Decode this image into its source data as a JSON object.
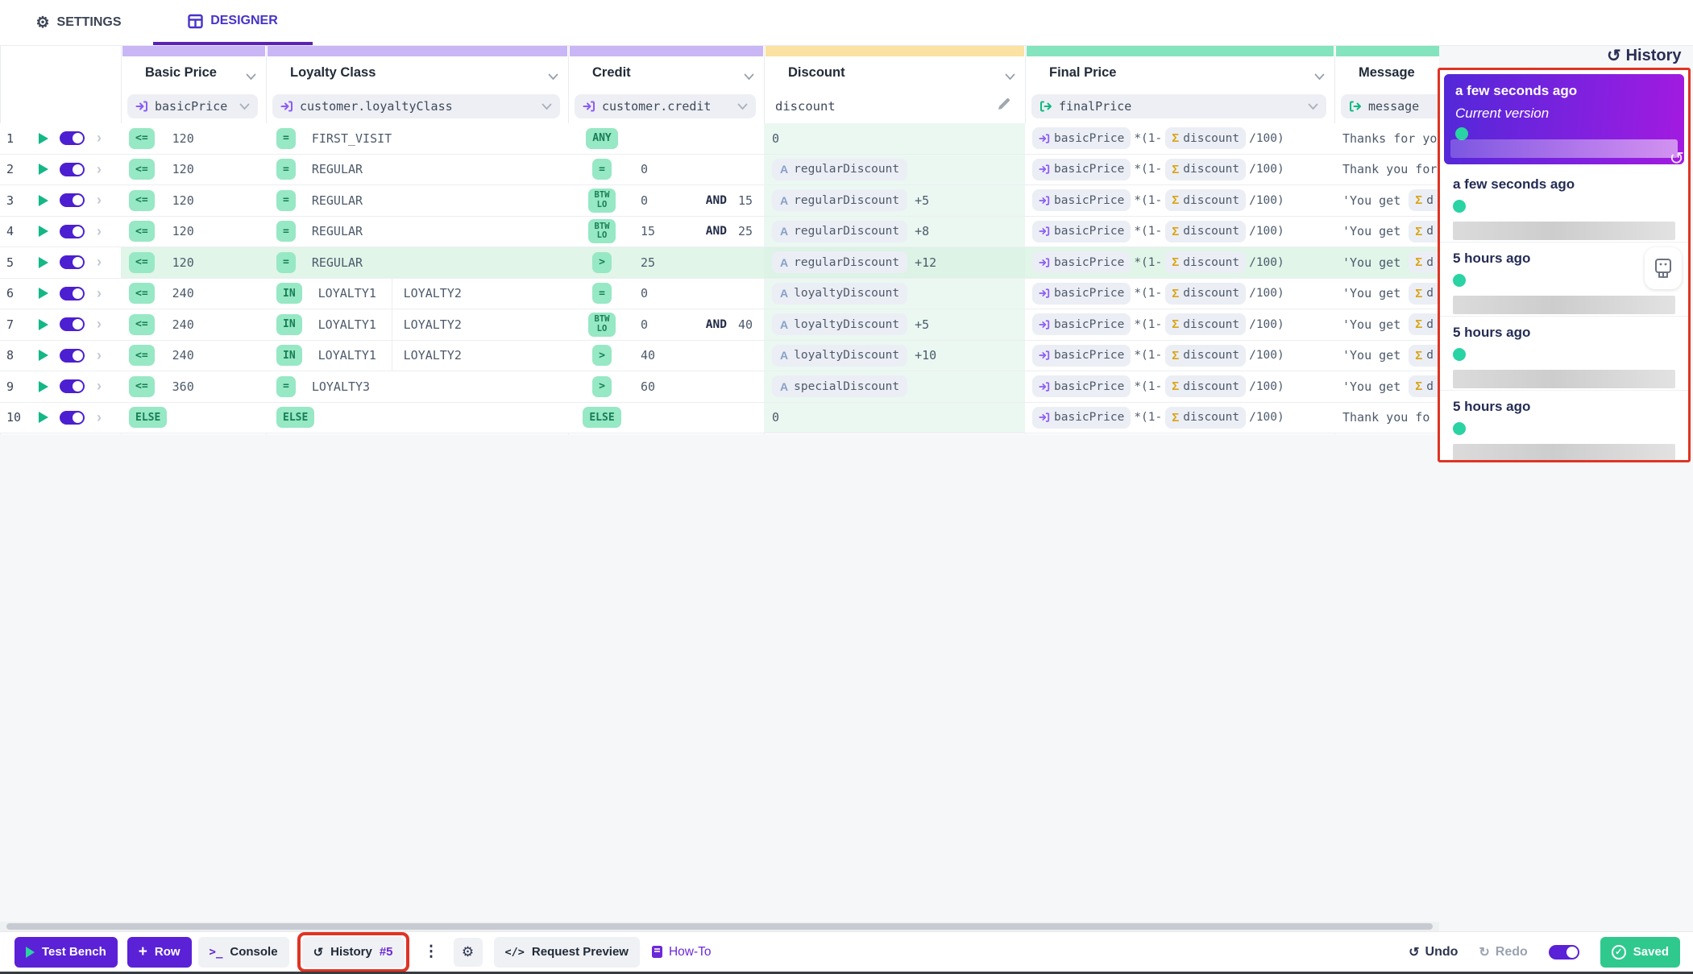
{
  "tabs": {
    "settings": "SETTINGS",
    "designer": "DESIGNER"
  },
  "history": {
    "title": "History",
    "entries": [
      {
        "time": "a few seconds ago",
        "label": "Current version",
        "current": true
      },
      {
        "time": "a few seconds ago",
        "current": false
      },
      {
        "time": "5 hours ago",
        "current": false,
        "restore": true
      },
      {
        "time": "5 hours ago",
        "current": false
      },
      {
        "time": "5 hours ago",
        "current": false
      }
    ]
  },
  "table": {
    "columns": [
      {
        "title": "Basic Price",
        "binding": "basicPrice",
        "kind": "input"
      },
      {
        "title": "Loyalty Class",
        "binding": "customer.loyaltyClass",
        "kind": "input"
      },
      {
        "title": "Credit",
        "binding": "customer.credit",
        "kind": "input"
      },
      {
        "title": "Discount",
        "binding": "discount",
        "kind": "expression"
      },
      {
        "title": "Final Price",
        "binding": "finalPrice",
        "kind": "output"
      },
      {
        "title": "Message",
        "binding": "message",
        "kind": "output"
      }
    ],
    "and_label": "AND",
    "rows": [
      {
        "num": "1",
        "enabled": true,
        "highlighted": false,
        "basic": {
          "op": "<=",
          "value": "120"
        },
        "loyalty": {
          "op": "=",
          "values": [
            "FIRST_VISIT"
          ]
        },
        "credit": {
          "op": "ANY",
          "value": ""
        },
        "discount": {
          "text": "0"
        },
        "final": {
          "input": "basicPrice",
          "operator": "*(1-",
          "sum": "discount",
          "suffix": "/100)"
        },
        "message": {
          "text": "Thanks for yo"
        }
      },
      {
        "num": "2",
        "enabled": true,
        "highlighted": false,
        "basic": {
          "op": "<=",
          "value": "120"
        },
        "loyalty": {
          "op": "=",
          "values": [
            "REGULAR"
          ]
        },
        "credit": {
          "op": "=",
          "value": "0"
        },
        "discount": {
          "var": "regularDiscount",
          "suffix": ""
        },
        "final": {
          "input": "basicPrice",
          "operator": "*(1-",
          "sum": "discount",
          "suffix": "/100)"
        },
        "message": {
          "text": "Thank you for"
        }
      },
      {
        "num": "3",
        "enabled": true,
        "highlighted": false,
        "basic": {
          "op": "<=",
          "value": "120"
        },
        "loyalty": {
          "op": "=",
          "values": [
            "REGULAR"
          ]
        },
        "credit": {
          "op": "BTW LO",
          "value": "0",
          "value2": "15"
        },
        "discount": {
          "var": "regularDiscount",
          "suffix": "+5"
        },
        "final": {
          "input": "basicPrice",
          "operator": "*(1-",
          "sum": "discount",
          "suffix": "/100)"
        },
        "message": {
          "prefix": "'You get",
          "sum": "d"
        }
      },
      {
        "num": "4",
        "enabled": true,
        "highlighted": false,
        "basic": {
          "op": "<=",
          "value": "120"
        },
        "loyalty": {
          "op": "=",
          "values": [
            "REGULAR"
          ]
        },
        "credit": {
          "op": "BTW LO",
          "value": "15",
          "value2": "25"
        },
        "discount": {
          "var": "regularDiscount",
          "suffix": "+8"
        },
        "final": {
          "input": "basicPrice",
          "operator": "*(1-",
          "sum": "discount",
          "suffix": "/100)"
        },
        "message": {
          "prefix": "'You get",
          "sum": "d"
        }
      },
      {
        "num": "5",
        "enabled": true,
        "highlighted": true,
        "basic": {
          "op": "<=",
          "value": "120"
        },
        "loyalty": {
          "op": "=",
          "values": [
            "REGULAR"
          ]
        },
        "credit": {
          "op": ">",
          "value": "25"
        },
        "discount": {
          "var": "regularDiscount",
          "suffix": "+12"
        },
        "final": {
          "input": "basicPrice",
          "operator": "*(1-",
          "sum": "discount",
          "suffix": "/100)"
        },
        "message": {
          "prefix": "'You get",
          "sum": "d"
        }
      },
      {
        "num": "6",
        "enabled": true,
        "highlighted": false,
        "basic": {
          "op": "<=",
          "value": "240"
        },
        "loyalty": {
          "op": "IN",
          "values": [
            "LOYALTY1",
            "LOYALTY2"
          ]
        },
        "credit": {
          "op": "=",
          "value": "0"
        },
        "discount": {
          "var": "loyaltyDiscount",
          "suffix": ""
        },
        "final": {
          "input": "basicPrice",
          "operator": "*(1-",
          "sum": "discount",
          "suffix": "/100)"
        },
        "message": {
          "prefix": "'You get",
          "sum": "d"
        }
      },
      {
        "num": "7",
        "enabled": true,
        "highlighted": false,
        "basic": {
          "op": "<=",
          "value": "240"
        },
        "loyalty": {
          "op": "IN",
          "values": [
            "LOYALTY1",
            "LOYALTY2"
          ]
        },
        "credit": {
          "op": "BTW LO",
          "value": "0",
          "value2": "40"
        },
        "discount": {
          "var": "loyaltyDiscount",
          "suffix": "+5"
        },
        "final": {
          "input": "basicPrice",
          "operator": "*(1-",
          "sum": "discount",
          "suffix": "/100)"
        },
        "message": {
          "prefix": "'You get",
          "sum": "d"
        }
      },
      {
        "num": "8",
        "enabled": true,
        "highlighted": false,
        "basic": {
          "op": "<=",
          "value": "240"
        },
        "loyalty": {
          "op": "IN",
          "values": [
            "LOYALTY1",
            "LOYALTY2"
          ]
        },
        "credit": {
          "op": ">",
          "value": "40"
        },
        "discount": {
          "var": "loyaltyDiscount",
          "suffix": "+10"
        },
        "final": {
          "input": "basicPrice",
          "operator": "*(1-",
          "sum": "discount",
          "suffix": "/100)"
        },
        "message": {
          "prefix": "'You get",
          "sum": "d"
        }
      },
      {
        "num": "9",
        "enabled": true,
        "highlighted": false,
        "basic": {
          "op": "<=",
          "value": "360"
        },
        "loyalty": {
          "op": "=",
          "values": [
            "LOYALTY3"
          ]
        },
        "credit": {
          "op": ">",
          "value": "60"
        },
        "discount": {
          "var": "specialDiscount",
          "suffix": ""
        },
        "final": {
          "input": "basicPrice",
          "operator": "*(1-",
          "sum": "discount",
          "suffix": "/100)"
        },
        "message": {
          "prefix": "'You get",
          "sum": "d"
        }
      },
      {
        "num": "10",
        "enabled": true,
        "highlighted": false,
        "basic": {
          "op": "ELSE",
          "value": ""
        },
        "loyalty": {
          "op": "ELSE",
          "values": []
        },
        "credit": {
          "op": "ELSE",
          "value": ""
        },
        "discount": {
          "text": "0"
        },
        "final": {
          "input": "basicPrice",
          "operator": "*(1-",
          "sum": "discount",
          "suffix": "/100)"
        },
        "message": {
          "text": "Thank you fo"
        }
      }
    ]
  },
  "toolbar": {
    "test_bench": "Test Bench",
    "add_row": "Row",
    "console": "Console",
    "history": "History",
    "history_badge": "#5",
    "request_preview": "Request Preview",
    "how_to": "How-To",
    "undo": "Undo",
    "redo": "Redo",
    "saved": "Saved"
  },
  "colors": {
    "accent_purple": "#5b21d6",
    "band_input": "#c9b6f5",
    "band_expression": "#fbe2a2",
    "band_output": "#84e4bd",
    "badge_bg": "#97e8c4",
    "badge_text": "#177e55",
    "discount_cell_bg": "#eaf8f1",
    "row_highlight": "#e1f5e9",
    "annotation_red": "#df3424",
    "saved_green": "#2fc98e",
    "history_dot_green": "#2ad3a3"
  }
}
